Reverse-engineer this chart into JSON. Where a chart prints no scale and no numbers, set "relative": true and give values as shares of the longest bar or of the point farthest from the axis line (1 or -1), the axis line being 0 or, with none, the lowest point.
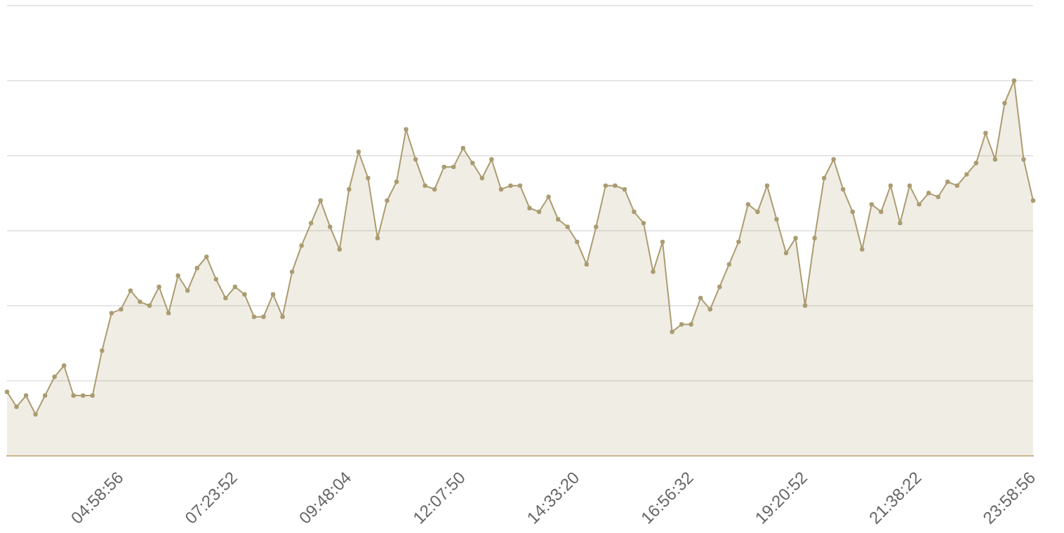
{
  "chart_data": {
    "type": "area",
    "relative": true,
    "grid": "y",
    "legend": false,
    "marker": "circle",
    "categories": [
      null,
      null,
      null,
      null,
      null,
      null,
      null,
      null,
      null,
      null,
      null,
      null,
      "04:58:56",
      null,
      null,
      null,
      null,
      null,
      null,
      null,
      null,
      null,
      null,
      null,
      "07:23:52",
      null,
      null,
      null,
      null,
      null,
      null,
      null,
      null,
      null,
      null,
      null,
      "09:48:04",
      null,
      null,
      null,
      null,
      null,
      null,
      null,
      null,
      null,
      null,
      null,
      "12:07:50",
      null,
      null,
      null,
      null,
      null,
      null,
      null,
      null,
      null,
      null,
      null,
      "14:33:20",
      null,
      null,
      null,
      null,
      null,
      null,
      null,
      null,
      null,
      null,
      null,
      "16:56:32",
      null,
      null,
      null,
      null,
      null,
      null,
      null,
      null,
      null,
      null,
      null,
      "19:20:52",
      null,
      null,
      null,
      null,
      null,
      null,
      null,
      null,
      null,
      null,
      null,
      "21:38:22",
      null,
      null,
      null,
      null,
      null,
      null,
      null,
      null,
      null,
      null,
      null,
      "23:58:56"
    ],
    "series": [
      {
        "color": "#ab9c70",
        "values": [
          0.17,
          0.13,
          0.16,
          0.11,
          0.16,
          0.21,
          0.24,
          0.16,
          0.16,
          0.16,
          0.28,
          0.38,
          0.39,
          0.44,
          0.41,
          0.4,
          0.45,
          0.38,
          0.48,
          0.44,
          0.5,
          0.53,
          0.47,
          0.42,
          0.45,
          0.43,
          0.37,
          0.37,
          0.43,
          0.37,
          0.49,
          0.56,
          0.62,
          0.68,
          0.61,
          0.55,
          0.71,
          0.81,
          0.74,
          0.58,
          0.68,
          0.73,
          0.87,
          0.79,
          0.72,
          0.71,
          0.77,
          0.77,
          0.82,
          0.78,
          0.74,
          0.79,
          0.71,
          0.72,
          0.72,
          0.66,
          0.65,
          0.69,
          0.63,
          0.61,
          0.57,
          0.51,
          0.61,
          0.72,
          0.72,
          0.71,
          0.65,
          0.62,
          0.49,
          0.57,
          0.33,
          0.35,
          0.35,
          0.42,
          0.39,
          0.45,
          0.51,
          0.57,
          0.67,
          0.65,
          0.72,
          0.63,
          0.54,
          0.58,
          0.4,
          0.58,
          0.74,
          0.79,
          0.71,
          0.65,
          0.55,
          0.67,
          0.65,
          0.72,
          0.62,
          0.72,
          0.67,
          0.7,
          0.69,
          0.73,
          0.72,
          0.75,
          0.78,
          0.86,
          0.79,
          0.94,
          1,
          0.79,
          0.68
        ]
      }
    ]
  }
}
